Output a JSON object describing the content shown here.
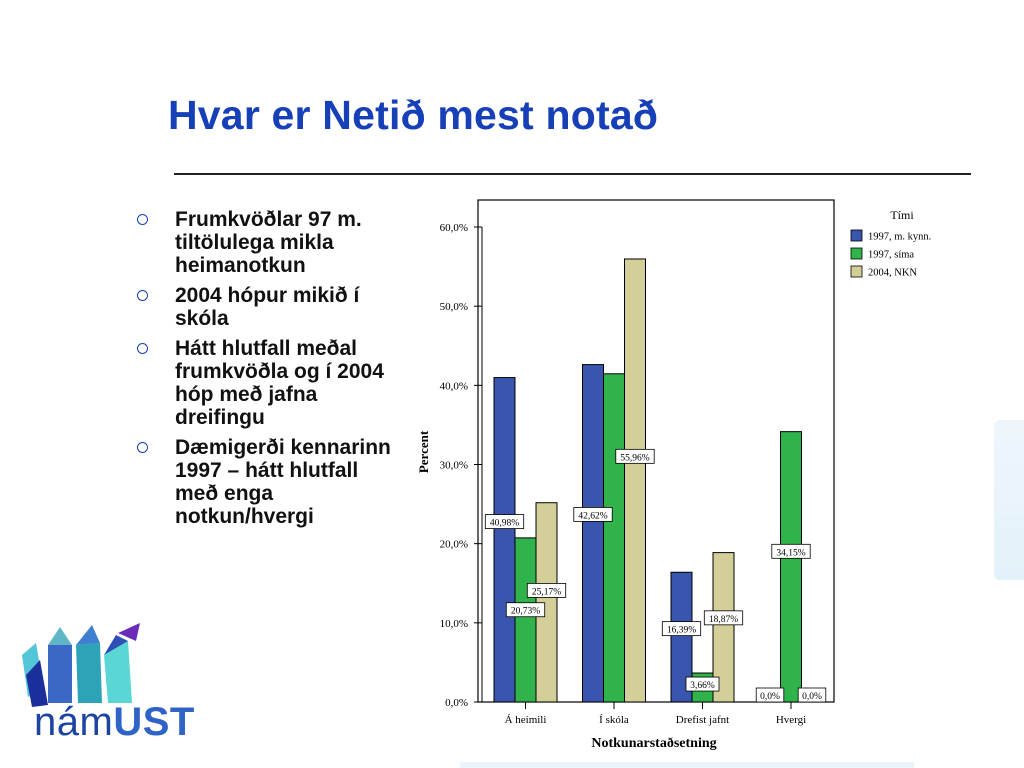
{
  "slide": {
    "title": "Hvar er Netið mest notað",
    "bullets": [
      "Frumkvöðlar 97 m. tiltölulega mikla heimanotkun",
      "2004 hópur mikið í skóla",
      "Hátt hlutfall meðal frumkvöðla og í 2004 hóp með jafna dreifingu",
      "Dæmigerði kennarinn 1997 – hátt hlutfall með enga notkun/hvergi"
    ]
  },
  "logo": {
    "prefix": "nám",
    "suffix": "UST"
  },
  "chart_data": {
    "type": "bar",
    "xlabel": "Notkunarstaðsetning",
    "ylabel": "Percent",
    "ylim": [
      0,
      60
    ],
    "yticks": [
      "0,0%",
      "10,0%",
      "20,0%",
      "30,0%",
      "40,0%",
      "50,0%",
      "60,0%"
    ],
    "categories": [
      "Á heimili",
      "Í skóla",
      "Drefist jafnt",
      "Hvergi"
    ],
    "legend": {
      "title": "Tími",
      "position": "right"
    },
    "series": [
      {
        "name": "1997, m. kynn.",
        "color": "#3a55ae",
        "values": [
          40.98,
          42.62,
          16.39,
          0.0
        ],
        "labels": [
          "40,98%",
          "42,62%",
          "16,39%",
          "0,0%"
        ]
      },
      {
        "name": "1997, síma",
        "color": "#2fb34a",
        "values": [
          20.73,
          41.46,
          3.66,
          34.15
        ],
        "labels": [
          "20,73%",
          "",
          "3,66%",
          "34,15%"
        ]
      },
      {
        "name": "2004, NKN",
        "color": "#d4cf98",
        "values": [
          25.17,
          55.96,
          18.87,
          0.0
        ],
        "labels": [
          "25,17%",
          "55,96%",
          "18,87%",
          "0,0%"
        ]
      }
    ]
  }
}
